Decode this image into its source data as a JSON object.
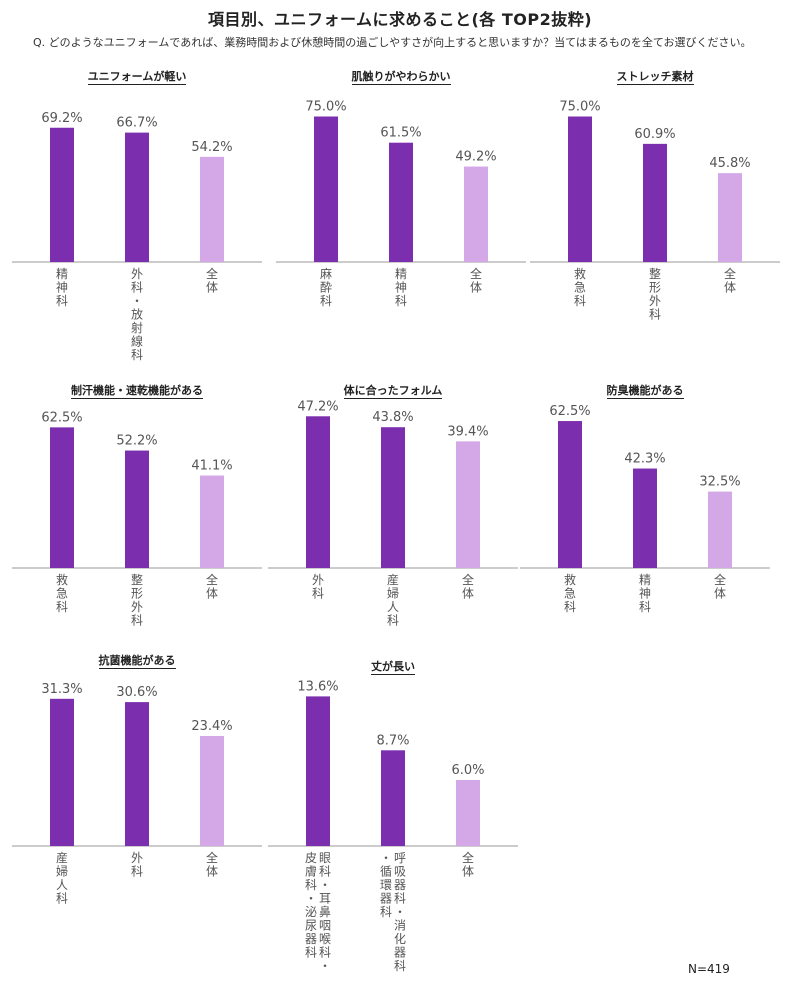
{
  "title": "項目別、ユニフォームに求めること(各 TOP2抜粋)",
  "question": "Q. どのようなユニフォームであれば、業務時間および休憩時間の過ごしやすさが向上すると思いますか？当てはまるものを全てお選びください。",
  "footnote": "N=419",
  "colors": {
    "dark": "#7b2fae",
    "light": "#d4a8e6",
    "axis": "#999999",
    "label": "#555555"
  },
  "chart_data": [
    {
      "type": "bar",
      "title": "ユニフォームが軽い",
      "categories": [
        "精神科",
        "外科・放射線科",
        "全体"
      ],
      "values": [
        69.2,
        66.7,
        54.2
      ],
      "labels": [
        "69.2%",
        "66.7%",
        "54.2%"
      ],
      "ylim": [
        0,
        100
      ]
    },
    {
      "type": "bar",
      "title": "肌触りがやわらかい",
      "categories": [
        "麻酔科",
        "精神科",
        "全体"
      ],
      "values": [
        75.0,
        61.5,
        49.2
      ],
      "labels": [
        "75.0%",
        "61.5%",
        "49.2%"
      ],
      "ylim": [
        0,
        100
      ]
    },
    {
      "type": "bar",
      "title": "ストレッチ素材",
      "categories": [
        "救急科",
        "整形外科",
        "全体"
      ],
      "values": [
        75.0,
        60.9,
        45.8
      ],
      "labels": [
        "75.0%",
        "60.9%",
        "45.8%"
      ],
      "ylim": [
        0,
        100
      ]
    },
    {
      "type": "bar",
      "title": "制汗機能・速乾機能がある",
      "categories": [
        "救急科",
        "整形外科",
        "全体"
      ],
      "values": [
        62.5,
        52.2,
        41.1
      ],
      "labels": [
        "62.5%",
        "52.2%",
        "41.1%"
      ],
      "ylim": [
        0,
        80
      ]
    },
    {
      "type": "bar",
      "title": "体に合ったフォルム",
      "categories": [
        "外科",
        "産婦人科",
        "全体"
      ],
      "values": [
        47.2,
        43.8,
        39.4
      ],
      "labels": [
        "47.2%",
        "43.8%",
        "39.4%"
      ],
      "ylim": [
        0,
        56
      ]
    },
    {
      "type": "bar",
      "title": "防臭機能がある",
      "categories": [
        "救急科",
        "精神科",
        "全体"
      ],
      "values": [
        62.5,
        42.3,
        32.5
      ],
      "labels": [
        "62.5%",
        "42.3%",
        "32.5%"
      ],
      "ylim": [
        0,
        74
      ]
    },
    {
      "type": "bar",
      "title": "抗菌機能がある",
      "categories": [
        "産婦人科",
        "外科",
        "全体"
      ],
      "values": [
        31.3,
        30.6,
        23.4
      ],
      "labels": [
        "31.3%",
        "30.6%",
        "23.4%"
      ],
      "ylim": [
        0,
        37
      ]
    },
    {
      "type": "bar",
      "title": "丈が長い",
      "categories": [
        "眼科・耳鼻咽喉科・皮膚科・泌尿器科",
        "呼吸器科・消化器科・循環器科",
        "全体"
      ],
      "values": [
        13.6,
        8.7,
        6.0
      ],
      "labels": [
        "13.6%",
        "8.7%",
        "6.0%"
      ],
      "ylim": [
        0,
        16
      ]
    }
  ]
}
